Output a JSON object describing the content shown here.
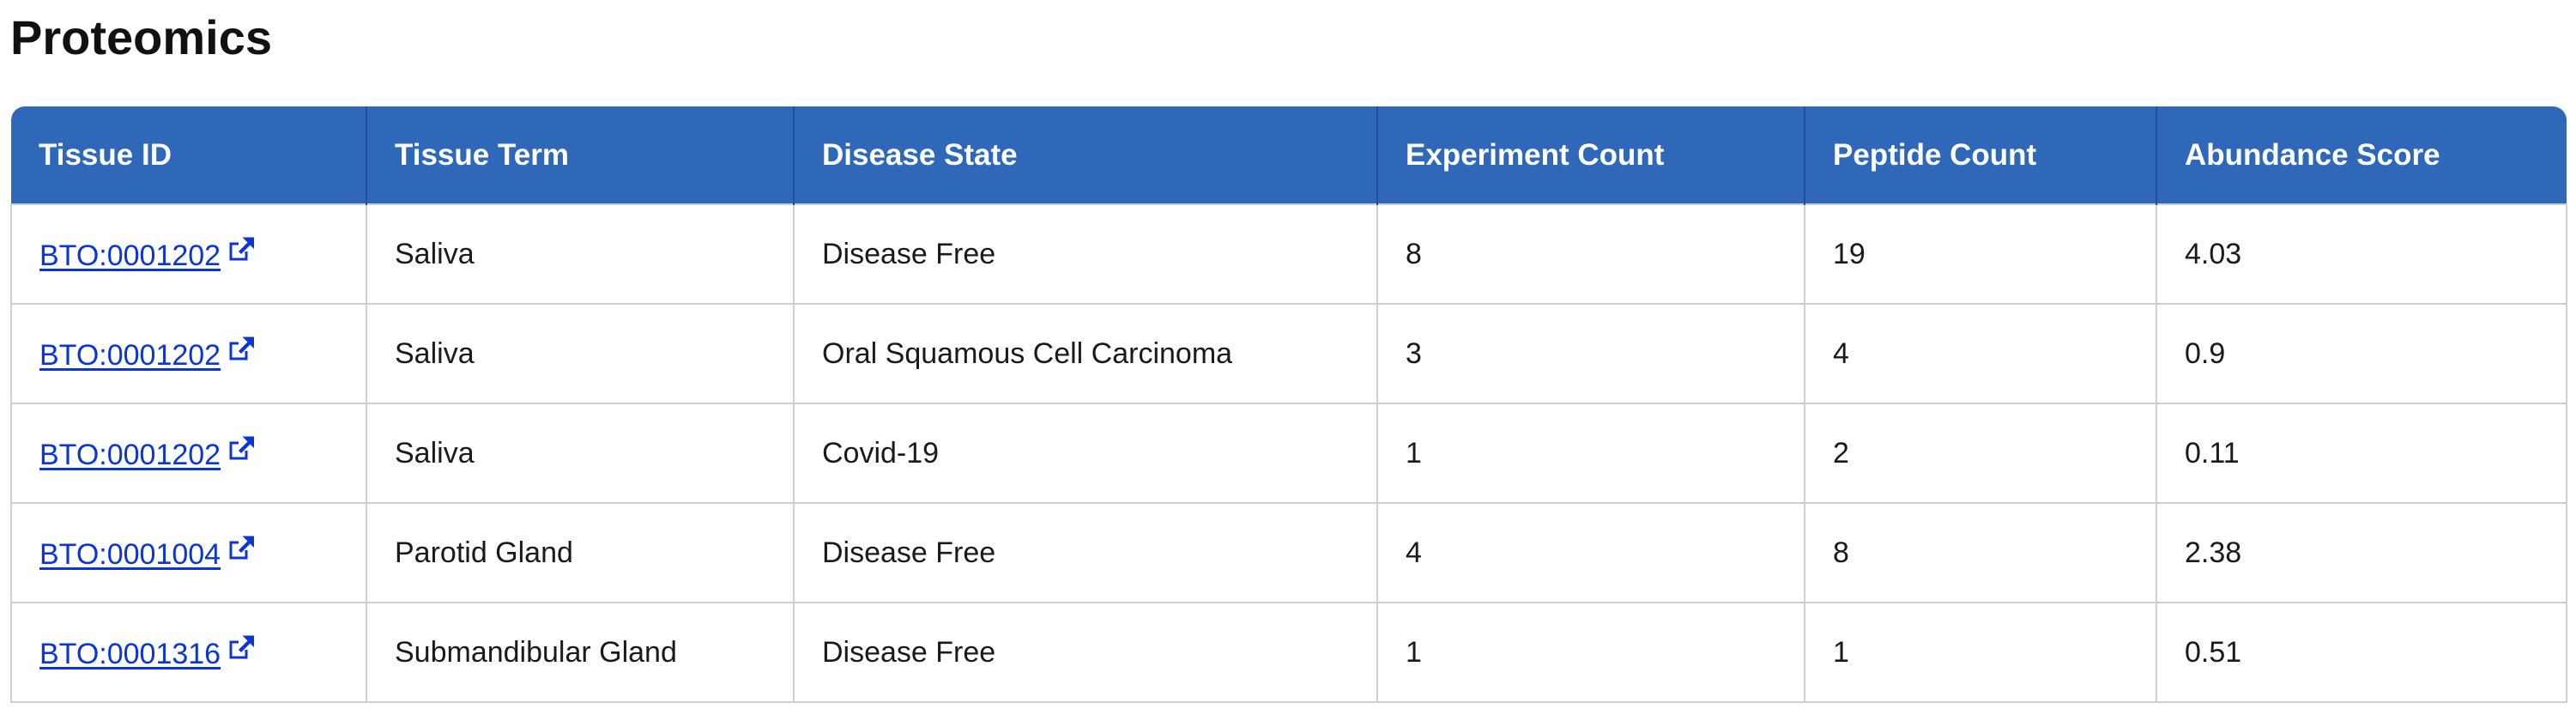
{
  "page": {
    "title": "Proteomics"
  },
  "table": {
    "headers": [
      "Tissue ID",
      "Tissue Term",
      "Disease State",
      "Experiment Count",
      "Peptide Count",
      "Abundance Score"
    ],
    "rows": [
      {
        "tissue_id": "BTO:0001202",
        "tissue_term": "Saliva",
        "disease_state": "Disease Free",
        "experiment_count": "8",
        "peptide_count": "19",
        "abundance_score": "4.03"
      },
      {
        "tissue_id": "BTO:0001202",
        "tissue_term": "Saliva",
        "disease_state": "Oral Squamous Cell Carcinoma",
        "experiment_count": "3",
        "peptide_count": "4",
        "abundance_score": "0.9"
      },
      {
        "tissue_id": "BTO:0001202",
        "tissue_term": "Saliva",
        "disease_state": "Covid-19",
        "experiment_count": "1",
        "peptide_count": "2",
        "abundance_score": "0.11"
      },
      {
        "tissue_id": "BTO:0001004",
        "tissue_term": "Parotid Gland",
        "disease_state": "Disease Free",
        "experiment_count": "4",
        "peptide_count": "8",
        "abundance_score": "2.38"
      },
      {
        "tissue_id": "BTO:0001316",
        "tissue_term": "Submandibular Gland",
        "disease_state": "Disease Free",
        "experiment_count": "1",
        "peptide_count": "1",
        "abundance_score": "0.51"
      }
    ]
  },
  "icons": {
    "external_link": "external-link-icon"
  },
  "colors": {
    "header_bg": "#2f68b9",
    "link": "#0b35d4",
    "border": "#cfcfcf"
  }
}
